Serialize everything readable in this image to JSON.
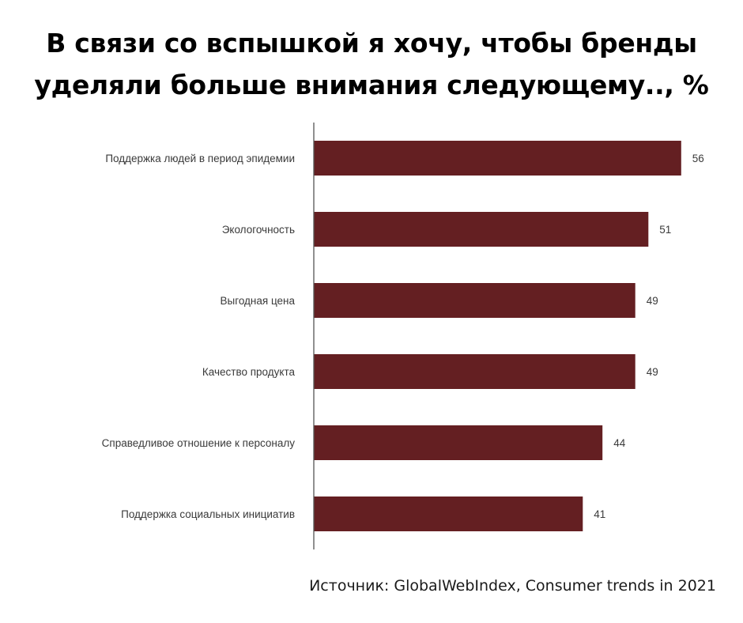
{
  "title_lines": [
    "В связи со вспышкой я хочу, чтобы бренды",
    "уделяли больше внимания следующему.., %"
  ],
  "source": "Источник: GlobalWebIndex, Consumer trends in 2021",
  "chart_data": {
    "type": "bar",
    "orientation": "horizontal",
    "title": "В связи со вспышкой я хочу, чтобы бренды уделяли больше внимания следующему.., %",
    "categories": [
      "Поддержка людей в период эпидемии",
      "Экологочность",
      "Выгодная цена",
      "Качество продукта",
      "Справедливое отношение к персоналу",
      "Поддержка социальных инициатив"
    ],
    "values": [
      56,
      51,
      49,
      49,
      44,
      41
    ],
    "data_labels": [
      "56",
      "51",
      "49",
      "49",
      "44",
      "41"
    ],
    "xlim": [
      0,
      60
    ],
    "grid": false,
    "legend": "none",
    "bar_color": "#641f22",
    "axis_color": "#555555"
  }
}
